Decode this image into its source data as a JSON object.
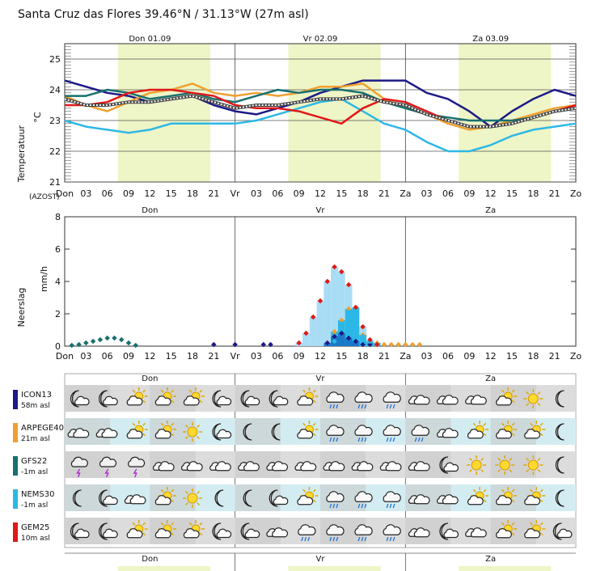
{
  "page": {
    "title": "Santa Cruz das Flores  39.46°N / 31.13°W (27m asl)"
  },
  "colors": {
    "day_shade": "#eef5c6",
    "icon_row_bg": "#dcdcdc",
    "icon_row_bg_light": "#d3ecf2",
    "grid": "#888888"
  },
  "time_axis": {
    "tick_labels": [
      "Don",
      "03",
      "06",
      "09",
      "12",
      "15",
      "18",
      "21",
      "Vr",
      "03",
      "06",
      "09",
      "12",
      "15",
      "18",
      "21",
      "Za",
      "03",
      "06",
      "09",
      "12",
      "15",
      "18",
      "21",
      "Zo"
    ],
    "day_names": [
      "Don",
      "Vr",
      "Za"
    ],
    "day_dates": [
      "Don 01.09",
      "Vr 02.09",
      "Za 03.09"
    ],
    "day_shading_hours": [
      [
        7.5,
        20.5
      ],
      [
        31.5,
        44.5
      ],
      [
        55.5,
        68.5
      ]
    ]
  },
  "chart_data": [
    {
      "type": "line",
      "name": "temperature",
      "ylabel": "Temperatuur",
      "unit": "°C",
      "corner_label": "(AZOST)",
      "ylim": [
        21,
        25.5
      ],
      "yticks": [
        21,
        22,
        23,
        24,
        25
      ],
      "x_hours": [
        0,
        3,
        6,
        9,
        12,
        15,
        18,
        21,
        24,
        27,
        30,
        33,
        36,
        39,
        42,
        45,
        48,
        51,
        54,
        57,
        60,
        63,
        66,
        69,
        72
      ],
      "series": [
        {
          "name": "ICON13",
          "color": "#1c1a86",
          "values": [
            24.3,
            24.1,
            23.9,
            23.8,
            23.6,
            23.7,
            23.8,
            23.5,
            23.3,
            23.2,
            23.4,
            23.6,
            23.9,
            24.1,
            24.3,
            24.3,
            24.3,
            23.9,
            23.7,
            23.3,
            22.8,
            23.3,
            23.7,
            24.0,
            23.8
          ]
        },
        {
          "name": "ARPEGE40",
          "color": "#f0a030",
          "values": [
            23.8,
            23.5,
            23.3,
            23.6,
            23.9,
            24.0,
            24.2,
            23.9,
            23.8,
            23.9,
            23.8,
            23.9,
            24.1,
            24.1,
            24.2,
            23.7,
            23.4,
            23.2,
            22.9,
            22.7,
            22.8,
            23.0,
            23.2,
            23.4,
            23.5
          ]
        },
        {
          "name": "GFS22",
          "color": "#177070",
          "values": [
            23.8,
            23.8,
            24.0,
            23.9,
            23.7,
            23.8,
            23.9,
            23.7,
            23.6,
            23.8,
            24.0,
            23.9,
            24.0,
            24.0,
            23.9,
            23.6,
            23.4,
            23.2,
            23.1,
            23.0,
            23.0,
            23.0,
            23.1,
            23.3,
            23.4
          ]
        },
        {
          "name": "NEMS30",
          "color": "#2cb8e6",
          "values": [
            23.0,
            22.8,
            22.7,
            22.6,
            22.7,
            22.9,
            22.9,
            22.9,
            22.9,
            23.0,
            23.2,
            23.4,
            23.6,
            23.7,
            23.3,
            22.9,
            22.7,
            22.3,
            22.0,
            22.0,
            22.2,
            22.5,
            22.7,
            22.8,
            22.9
          ]
        },
        {
          "name": "GEM25",
          "color": "#e01818",
          "values": [
            23.5,
            23.5,
            23.6,
            23.9,
            24.0,
            24.0,
            23.9,
            23.8,
            23.5,
            23.4,
            23.4,
            23.3,
            23.1,
            22.9,
            23.4,
            23.7,
            23.6,
            23.3,
            23.0,
            22.8,
            22.8,
            22.9,
            23.1,
            23.3,
            23.5
          ]
        },
        {
          "name": "mean",
          "color": "#555555",
          "values": [
            23.7,
            23.5,
            23.5,
            23.6,
            23.6,
            23.7,
            23.8,
            23.6,
            23.4,
            23.5,
            23.5,
            23.6,
            23.7,
            23.7,
            23.8,
            23.6,
            23.5,
            23.2,
            23.0,
            22.8,
            22.8,
            22.9,
            23.1,
            23.3,
            23.4
          ]
        }
      ]
    },
    {
      "type": "bar",
      "name": "precipitation",
      "ylabel": "Neerslag",
      "unit": "mm/h",
      "ylim": [
        0,
        8
      ],
      "yticks": [
        0,
        2,
        4,
        6,
        8
      ],
      "x_hours": [
        1,
        2,
        3,
        4,
        5,
        6,
        7,
        8,
        9,
        10,
        11,
        21,
        24,
        28,
        29,
        31,
        32,
        33,
        34,
        35,
        36,
        37,
        38,
        39,
        40,
        41,
        42,
        43,
        44,
        45,
        46,
        47,
        48,
        49,
        50
      ],
      "series": [
        {
          "name": "ICON13",
          "color": "#1c1a86",
          "values": [
            0,
            0,
            0,
            0,
            0,
            0,
            0,
            0,
            0,
            0,
            0,
            0.1,
            0.1,
            0.1,
            0.1,
            0,
            0,
            0,
            0,
            0,
            0,
            0.2,
            0.6,
            0.8,
            0.5,
            0.3,
            0.1,
            0.1,
            0,
            0,
            0,
            0,
            0,
            0,
            0
          ]
        },
        {
          "name": "ARPEGE40",
          "color": "#f0a030",
          "values": [
            0,
            0,
            0,
            0,
            0,
            0,
            0,
            0,
            0,
            0,
            0,
            0,
            0,
            0,
            0,
            0,
            0,
            0,
            0,
            0,
            0,
            0,
            0.9,
            1.6,
            2.3,
            2.4,
            0.7,
            0.3,
            0.2,
            0.1,
            0.1,
            0.1,
            0.1,
            0.1,
            0.1
          ]
        },
        {
          "name": "GFS22",
          "color": "#177070",
          "values": [
            0.05,
            0.1,
            0.2,
            0.3,
            0.4,
            0.5,
            0.5,
            0.4,
            0.2,
            0.05,
            0,
            0,
            0,
            0,
            0,
            0,
            0,
            0,
            0,
            0,
            0,
            0,
            0,
            0,
            0,
            0,
            0,
            0,
            0,
            0,
            0,
            0,
            0,
            0,
            0
          ]
        },
        {
          "name": "NEMS30",
          "color": "#2cb8e6",
          "values": [
            0,
            0,
            0,
            0,
            0,
            0,
            0,
            0,
            0,
            0,
            0,
            0,
            0,
            0,
            0,
            0,
            0,
            0,
            0,
            0,
            0,
            0,
            0.3,
            1.4,
            2.1,
            1.0,
            0.6,
            0.3,
            0.1,
            0,
            0,
            0,
            0,
            0,
            0
          ]
        },
        {
          "name": "GEM25",
          "color": "#e01818",
          "values": [
            0,
            0,
            0,
            0,
            0,
            0,
            0,
            0,
            0,
            0,
            0,
            0,
            0,
            0,
            0,
            0,
            0,
            0.2,
            0.8,
            1.8,
            2.8,
            4.0,
            4.9,
            4.6,
            3.8,
            2.4,
            1.2,
            0.4,
            0.1,
            0,
            0,
            0,
            0,
            0,
            0
          ]
        }
      ]
    }
  ],
  "icon_models": [
    {
      "name": "ICON13",
      "elev": "58m asl",
      "color": "#1c1a86"
    },
    {
      "name": "ARPEGE40",
      "elev": "21m asl",
      "color": "#f0a030"
    },
    {
      "name": "GFS22",
      "elev": "-1m asl",
      "color": "#177070"
    },
    {
      "name": "NEMS30",
      "elev": "-1m asl",
      "color": "#2cb8e6"
    },
    {
      "name": "GEM25",
      "elev": "10m asl",
      "color": "#e01818"
    }
  ],
  "icon_rows": [
    [
      "moon-cloud",
      "moon-cloud",
      "sun-cloud",
      "sun-cloud",
      "sun-cloud",
      "moon-cloud",
      "moon-cloud",
      "moon-cloud",
      "sun-cloud",
      "rain-cloud",
      "rain-cloud",
      "rain-cloud",
      "cloud",
      "cloud",
      "cloud",
      "sun-cloud",
      "sun",
      "moon"
    ],
    [
      "cloud",
      "cloud",
      "sun-cloud",
      "sun-cloud",
      "sun",
      "moon-cloud",
      "moon",
      "moon",
      "sun-cloud",
      "rain-cloud",
      "rain-cloud",
      "rain-cloud",
      "rain-cloud",
      "cloud",
      "sun-cloud",
      "sun-cloud",
      "sun-cloud",
      "moon"
    ],
    [
      "storm-cloud",
      "storm-cloud",
      "storm-cloud",
      "cloud",
      "cloud",
      "cloud",
      "cloud",
      "cloud",
      "cloud",
      "cloud",
      "cloud",
      "cloud",
      "cloud",
      "moon-cloud",
      "sun",
      "sun",
      "sun",
      "moon"
    ],
    [
      "moon",
      "moon-cloud",
      "cloud",
      "sun-cloud",
      "sun",
      "moon",
      "moon",
      "moon-cloud",
      "sun-cloud",
      "rain-cloud",
      "rain-cloud",
      "rain-cloud",
      "cloud",
      "cloud",
      "sun-cloud",
      "sun-cloud",
      "sun-cloud",
      "moon"
    ],
    [
      "moon-cloud",
      "moon-cloud",
      "sun-cloud",
      "sun-cloud",
      "sun-cloud",
      "moon-cloud",
      "moon-cloud",
      "cloud",
      "rain-cloud",
      "rain-cloud",
      "rain-cloud",
      "rain-cloud",
      "cloud",
      "moon-cloud",
      "cloud",
      "sun-cloud",
      "sun-cloud",
      "moon-cloud"
    ]
  ]
}
